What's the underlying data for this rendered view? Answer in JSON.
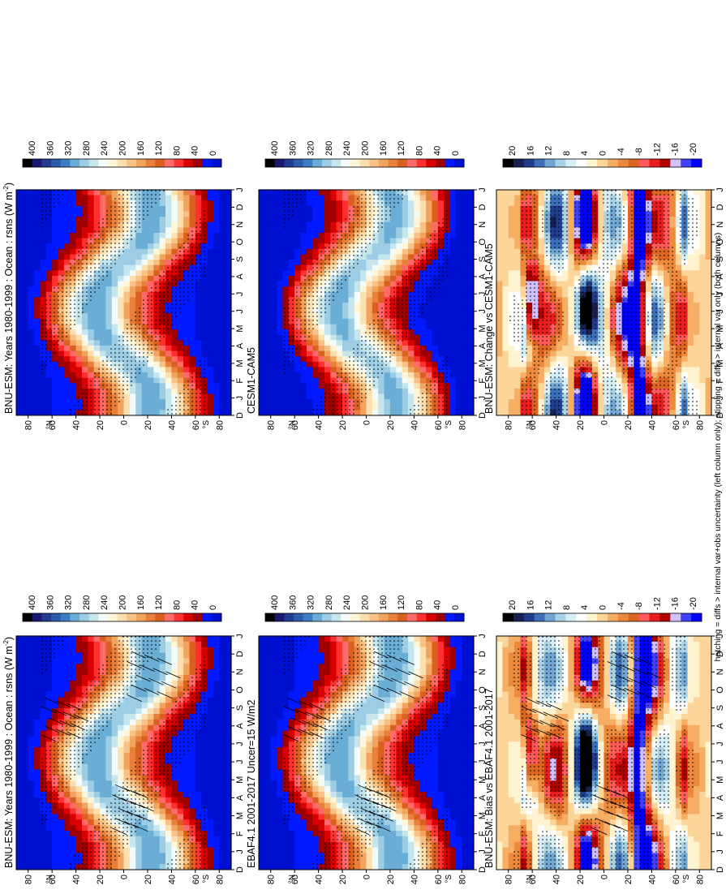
{
  "figure": {
    "footnote": "hatching = diffs > internal var+obs uncertainty (left column only); stippling = diffs > internal var only (both columns)",
    "cmap_abs": [
      "#000000",
      "#191970",
      "#223a90",
      "#2b5cab",
      "#3a7fc4",
      "#6aaed6",
      "#9ccde4",
      "#c6e6ee",
      "#f3fbfb",
      "#fff6d8",
      "#fce0b0",
      "#f8c286",
      "#f2a35e",
      "#e8803c",
      "#d9601f",
      "#ff6b6b",
      "#ff3030",
      "#d80000",
      "#9e0000",
      "#0019ff",
      "#0010d0"
    ],
    "cmap_diff": [
      "#000000",
      "#172050",
      "#1f3d8a",
      "#3b6fb8",
      "#72a6d2",
      "#a9d1e6",
      "#d6eef5",
      "#ffffff",
      "#fff3d0",
      "#fcd59a",
      "#f5ae64",
      "#eb8a3d",
      "#dc6522",
      "#ff5a5a",
      "#e81e1e",
      "#b00000",
      "#d0c0ff",
      "#4040ff",
      "#0000ff"
    ]
  },
  "chart_data": [
    {
      "type": "heatmap",
      "panel": "model",
      "title": "BNU-ESM: Years 1980-1999 : Ocean : rsns (W m",
      "title_sup": "-2",
      "title_end": ")",
      "x": [
        "J",
        "F",
        "M",
        "A",
        "M",
        "J",
        "J",
        "A",
        "S",
        "O",
        "N",
        "D",
        "J"
      ],
      "x_lead": "D",
      "y_ticks": [
        "80",
        "60",
        "40",
        "20",
        "0",
        "20",
        "40",
        "60",
        "80"
      ],
      "y_hemi": [
        "°S",
        "°N"
      ],
      "colorbar": [
        "0",
        "40",
        "80",
        "120",
        "160",
        "200",
        "240",
        "280",
        "320",
        "360",
        "400"
      ],
      "value_range": [
        0,
        420
      ],
      "hatching": true,
      "stippling": true
    },
    {
      "type": "heatmap",
      "panel": "model",
      "title": "BNU-ESM: Years 1980-1999 : Ocean : rsns (W m",
      "title_sup": "-2",
      "title_end": ")",
      "x": [
        "J",
        "F",
        "M",
        "A",
        "M",
        "J",
        "J",
        "A",
        "S",
        "O",
        "N",
        "D",
        "J"
      ],
      "x_lead": "D",
      "y_ticks": [
        "80",
        "60",
        "40",
        "20",
        "0",
        "20",
        "40",
        "60",
        "80"
      ],
      "y_hemi": [
        "°S",
        "°N"
      ],
      "colorbar": [
        "0",
        "40",
        "80",
        "120",
        "160",
        "200",
        "240",
        "280",
        "320",
        "360",
        "400"
      ],
      "value_range": [
        0,
        420
      ],
      "hatching": false,
      "stippling": true
    },
    {
      "type": "heatmap",
      "panel": "ref",
      "title": "EBAF4.1 2001-2017 Uncer=15 W/m2",
      "x": [
        "J",
        "F",
        "M",
        "A",
        "M",
        "J",
        "J",
        "A",
        "S",
        "O",
        "N",
        "D",
        "J"
      ],
      "x_lead": "D",
      "y_ticks": [
        "80",
        "60",
        "40",
        "20",
        "0",
        "20",
        "40",
        "60",
        "80"
      ],
      "y_hemi": [
        "°S",
        "°N"
      ],
      "colorbar": [
        "0",
        "40",
        "80",
        "120",
        "160",
        "200",
        "240",
        "280",
        "320",
        "360",
        "400"
      ],
      "value_range": [
        0,
        420
      ],
      "hatching": true,
      "stippling": true
    },
    {
      "type": "heatmap",
      "panel": "ref",
      "title": "CESM1-CAM5",
      "x": [
        "J",
        "F",
        "M",
        "A",
        "M",
        "J",
        "J",
        "A",
        "S",
        "O",
        "N",
        "D",
        "J"
      ],
      "x_lead": "D",
      "y_ticks": [
        "80",
        "60",
        "40",
        "20",
        "0",
        "20",
        "40",
        "60",
        "80"
      ],
      "y_hemi": [
        "°S",
        "°N"
      ],
      "colorbar": [
        "0",
        "40",
        "80",
        "120",
        "160",
        "200",
        "240",
        "280",
        "320",
        "360",
        "400"
      ],
      "value_range": [
        0,
        420
      ],
      "hatching": false,
      "stippling": true
    },
    {
      "type": "heatmap",
      "panel": "diff",
      "title": "BNU-ESM: Bias vs EBAF4.1 2001-2017",
      "x": [
        "J",
        "F",
        "M",
        "A",
        "M",
        "J",
        "J",
        "A",
        "S",
        "O",
        "N",
        "D",
        "J"
      ],
      "x_lead": "D",
      "y_ticks": [
        "80",
        "60",
        "40",
        "20",
        "0",
        "20",
        "40",
        "60",
        "80"
      ],
      "y_hemi": [
        "°S",
        "°N"
      ],
      "colorbar": [
        "-20",
        "-16",
        "-12",
        "-8",
        "-4",
        "0",
        "4",
        "8",
        "12",
        "16",
        "20"
      ],
      "value_range": [
        -22,
        22
      ],
      "hatching": true,
      "stippling": true
    },
    {
      "type": "heatmap",
      "panel": "diff",
      "title": "BNU-ESM: Change vs CESM1-CAM5",
      "x": [
        "J",
        "F",
        "M",
        "A",
        "M",
        "J",
        "J",
        "A",
        "S",
        "O",
        "N",
        "D",
        "J"
      ],
      "x_lead": "D",
      "y_ticks": [
        "80",
        "60",
        "40",
        "20",
        "0",
        "20",
        "40",
        "60",
        "80"
      ],
      "y_hemi": [
        "°S",
        "°N"
      ],
      "colorbar": [
        "-20",
        "-16",
        "-12",
        "-8",
        "-4",
        "0",
        "4",
        "8",
        "12",
        "16",
        "20"
      ],
      "value_range": [
        -22,
        22
      ],
      "hatching": false,
      "stippling": true
    }
  ]
}
